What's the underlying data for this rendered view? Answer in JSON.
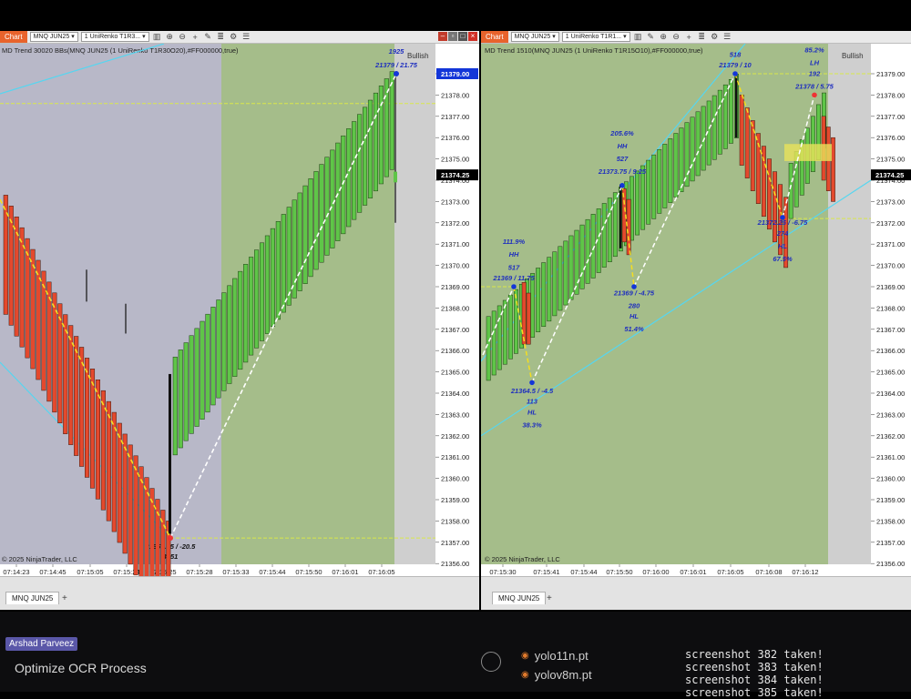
{
  "left": {
    "chart_button": "Chart",
    "instrument": "MNQ JUN25",
    "bar_type": "1 UniRenko T1R3...",
    "indicator": "MD Trend 30020 BBs(MNQ JUN25 (1 UniRenko T1R30O20),#FF000000,true)",
    "bias": "Bullish",
    "copyright": "© 2025 NinjaTrader, LLC",
    "tab": "MNQ JUN25",
    "price_labels": [
      "21379.00",
      "21378.00",
      "21377.00",
      "21376.00",
      "21375.00",
      "21374.00",
      "21373.00",
      "21372.00",
      "21371.00",
      "21370.00",
      "21369.00",
      "21368.00",
      "21367.00",
      "21366.00",
      "21365.00",
      "21364.00",
      "21363.00",
      "21362.00",
      "21361.00",
      "21360.00",
      "21359.00",
      "21358.00",
      "21357.00",
      "21356.00"
    ],
    "current_price": "21374.25",
    "time_labels": [
      "07:14:23",
      "07:14:45",
      "07:15:05",
      "07:15:24",
      "07:15:25",
      "07:15:28",
      "07:15:33",
      "07:15:44",
      "07:15:50",
      "07:16:01",
      "07:16:05"
    ],
    "annotations": {
      "high_vol": "1925",
      "high_price": "21379 / 21.75",
      "low_price": "21357.25 / -20.5",
      "low_vol": "3951"
    }
  },
  "right": {
    "chart_button": "Chart",
    "instrument": "MNQ JUN25",
    "bar_type": "1 UniRenko T1R1...",
    "indicator": "MD Trend 1510(MNQ JUN25 (1 UniRenko T1R15O10),#FF000000,true)",
    "bias": "Bullish",
    "copyright": "© 2025 NinjaTrader, LLC",
    "tab": "MNQ JUN25",
    "price_labels": [
      "21379.00",
      "21378.00",
      "21377.00",
      "21376.00",
      "21375.00",
      "21374.00",
      "21373.00",
      "21372.00",
      "21371.00",
      "21370.00",
      "21369.00",
      "21368.00",
      "21367.00",
      "21366.00",
      "21365.00",
      "21364.00",
      "21363.00",
      "21362.00",
      "21361.00",
      "21360.00",
      "21359.00",
      "21358.00",
      "21357.00",
      "21356.00"
    ],
    "current_price": "21374.25",
    "time_labels": [
      "07:15:30",
      "07:15:41",
      "07:15:44",
      "07:15:50",
      "07:16:00",
      "07:16:01",
      "07:16:05",
      "07:16:08",
      "07:16:12"
    ],
    "annotations": {
      "a1": [
        "111.9%",
        "HH",
        "517",
        "21369 / 11.75"
      ],
      "a2": [
        "21364.5 / -4.5",
        "113",
        "HL",
        "38.3%"
      ],
      "a3": [
        "205.6%",
        "HH",
        "527",
        "21373.75 / 9.25"
      ],
      "a4": [
        "21369 / -4.75",
        "280",
        "HL",
        "51.4%"
      ],
      "a5": [
        "518",
        "21379 / 10"
      ],
      "a6": [
        "85.2%",
        "LH",
        "192",
        "21378 / 5.75"
      ],
      "a7": [
        "21372.25 / -6.75",
        "274",
        "HL",
        "67.5%"
      ]
    }
  },
  "taskbar": {
    "user": "Arshad Parveez",
    "title": "Optimize OCR Process",
    "files": [
      "yolo11n.pt",
      "yolov8m.pt"
    ],
    "logs": [
      "screenshot 382 taken!",
      "screenshot 383 taken!",
      "screenshot 384 taken!",
      "screenshot 385 taken!"
    ]
  },
  "colors": {
    "bull_bar": "#5fc548",
    "bear_bar": "#e4492d",
    "left_bg_gray": "#b8b8c8",
    "bull_bg": "#a5bd8a",
    "channel_line": "#56d6f0",
    "zigzag_bear": "#f5de20",
    "zigzag_bull": "#ffffff",
    "annotation_text": "#1f2fbf"
  }
}
